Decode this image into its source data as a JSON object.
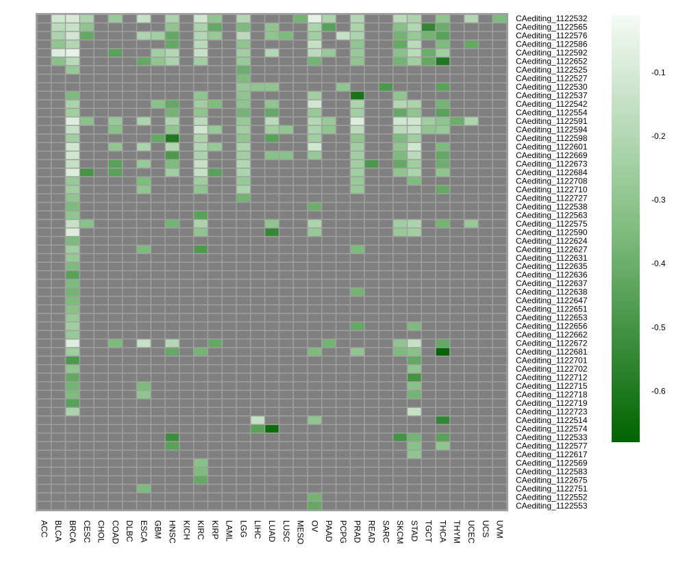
{
  "chart_data": {
    "type": "heatmap",
    "title": "",
    "xlabel": "",
    "ylabel": "",
    "na_color": "#808080",
    "color_low": "#006400",
    "color_high": "#F5FAF5",
    "value_range": [
      -0.68,
      -0.01
    ],
    "columns": [
      "ACC",
      "BLCA",
      "BRCA",
      "CESC",
      "CHOL",
      "COAD",
      "DLBC",
      "ESCA",
      "GBM",
      "HNSC",
      "KICH",
      "KIRC",
      "KIRP",
      "LAML",
      "LGG",
      "LIHC",
      "LUAD",
      "LUSC",
      "MESO",
      "OV",
      "PAAD",
      "PCPG",
      "PRAD",
      "READ",
      "SARC",
      "SKCM",
      "STAD",
      "TGCT",
      "THCA",
      "THYM",
      "UCEC",
      "UCS",
      "UVM"
    ],
    "rows": [
      {
        "name": "CAediting_1122532",
        "values": {
          "BLCA": -0.12,
          "BRCA": -0.1,
          "CESC": -0.22,
          "COAD": -0.28,
          "ESCA": -0.15,
          "HNSC": -0.22,
          "KIRC": -0.12,
          "KIRP": -0.3,
          "LGG": -0.2,
          "OV": -0.06,
          "PAAD": -0.22,
          "PRAD": -0.2,
          "SKCM": -0.18,
          "STAD": -0.22,
          "THCA": -0.3,
          "UCEC": -0.2,
          "UVM": -0.35,
          "MESO": -0.38
        }
      },
      {
        "name": "CAediting_1122565",
        "values": {
          "BLCA": -0.18,
          "BRCA": -0.14,
          "CESC": -0.3,
          "HNSC": -0.3,
          "KIRC": -0.22,
          "KIRP": -0.42,
          "LGG": -0.35,
          "LUAD": -0.3,
          "OV": -0.22,
          "PAAD": -0.45,
          "PRAD": -0.22,
          "SKCM": -0.32,
          "STAD": -0.2,
          "TGCT": -0.55,
          "THCA": -0.4
        }
      },
      {
        "name": "CAediting_1122576",
        "values": {
          "BLCA": -0.22,
          "BRCA": -0.12,
          "CESC": -0.42,
          "ESCA": -0.22,
          "GBM": -0.25,
          "HNSC": -0.42,
          "KIRC": -0.2,
          "KIRP": -0.28,
          "LGG": -0.18,
          "LUAD": -0.3,
          "LUSC": -0.35,
          "OV": -0.25,
          "PCPG": -0.15,
          "PRAD": -0.22,
          "SKCM": -0.38,
          "STAD": -0.28,
          "TGCT": -0.38,
          "THCA": -0.45
        }
      },
      {
        "name": "CAediting_1122586",
        "values": {
          "BLCA": -0.3,
          "BRCA": -0.2,
          "HNSC": -0.42,
          "KIRC": -0.18,
          "LGG": -0.3,
          "OV": -0.15,
          "PRAD": -0.3,
          "SKCM": -0.42,
          "STAD": -0.18,
          "THCA": -0.35,
          "UCEC": -0.42
        }
      },
      {
        "name": "CAediting_1122592",
        "values": {
          "BLCA": -0.08,
          "BRCA": -0.05,
          "COAD": -0.45,
          "GBM": -0.25,
          "HNSC": -0.2,
          "KIRC": -0.15,
          "LGG": -0.25,
          "LUAD": -0.2,
          "OV": -0.18,
          "PAAD": -0.28,
          "PRAD": -0.28,
          "SKCM": -0.32,
          "STAD": -0.18,
          "TGCT": -0.4,
          "THCA": -0.25
        }
      },
      {
        "name": "CAediting_1122652",
        "values": {
          "BLCA": -0.32,
          "BRCA": -0.18,
          "ESCA": -0.42,
          "GBM": -0.3,
          "HNSC": -0.22,
          "KIRC": -0.25,
          "LGG": -0.28,
          "OV": -0.38,
          "PRAD": -0.3,
          "SKCM": -0.38,
          "STAD": -0.25,
          "TGCT": -0.42,
          "THCA": -0.6
        }
      },
      {
        "name": "CAediting_1122525",
        "values": {
          "BRCA": -0.28,
          "LGG": -0.4
        }
      },
      {
        "name": "CAediting_1122527",
        "values": {
          "LGG": -0.35
        }
      },
      {
        "name": "CAediting_1122530",
        "values": {
          "LGG": -0.28,
          "LIHC": -0.3,
          "LUAD": -0.3,
          "PCPG": -0.3,
          "SARC": -0.48,
          "THCA": -0.45
        }
      },
      {
        "name": "CAediting_1122537",
        "values": {
          "BRCA": -0.35,
          "KIRC": -0.3,
          "LGG": -0.3,
          "OV": -0.25,
          "PRAD": -0.62,
          "SKCM": -0.3
        }
      },
      {
        "name": "CAediting_1122542",
        "values": {
          "BRCA": -0.22,
          "GBM": -0.32,
          "HNSC": -0.42,
          "KIRC": -0.25,
          "KIRP": -0.35,
          "LGG": -0.3,
          "LUAD": -0.3,
          "OV": -0.12,
          "PRAD": -0.22,
          "SKCM": -0.2,
          "STAD": -0.22,
          "THCA": -0.38
        }
      },
      {
        "name": "CAediting_1122554",
        "values": {
          "BRCA": -0.25,
          "HNSC": -0.38,
          "KIRC": -0.3,
          "LGG": -0.38,
          "LUAD": -0.42,
          "OV": -0.28,
          "PRAD": -0.25,
          "SKCM": -0.42,
          "STAD": -0.3,
          "THCA": -0.45
        }
      },
      {
        "name": "CAediting_1122591",
        "values": {
          "BRCA": -0.08,
          "CESC": -0.32,
          "COAD": -0.28,
          "ESCA": -0.22,
          "HNSC": -0.22,
          "KIRC": -0.18,
          "LGG": -0.28,
          "LUAD": -0.18,
          "OV": -0.2,
          "PAAD": -0.28,
          "PRAD": -0.08,
          "SKCM": -0.12,
          "STAD": -0.12,
          "TGCT": -0.25,
          "THCA": -0.3,
          "THYM": -0.4,
          "UCEC": -0.22
        }
      },
      {
        "name": "CAediting_1122594",
        "values": {
          "BRCA": -0.15,
          "COAD": -0.32,
          "HNSC": -0.3,
          "KIRC": -0.12,
          "KIRP": -0.28,
          "LGG": -0.25,
          "LUAD": -0.25,
          "LUSC": -0.3,
          "OV": -0.22,
          "PAAD": -0.3,
          "PRAD": -0.18,
          "SKCM": -0.18,
          "STAD": -0.15,
          "TGCT": -0.3,
          "THCA": -0.28
        }
      },
      {
        "name": "CAediting_1122598",
        "values": {
          "BRCA": -0.25,
          "GBM": -0.42,
          "HNSC": -0.6,
          "KIRC": -0.22,
          "LGG": -0.3,
          "LUAD": -0.45,
          "OV": -0.25,
          "PRAD": -0.3,
          "SKCM": -0.35,
          "STAD": -0.25
        }
      },
      {
        "name": "CAediting_1122601",
        "values": {
          "BRCA": -0.12,
          "COAD": -0.3,
          "ESCA": -0.22,
          "HNSC": -0.2,
          "KIRC": -0.2,
          "KIRP": -0.28,
          "LGG": -0.22,
          "OV": -0.12,
          "PRAD": -0.25,
          "SKCM": -0.3,
          "STAD": -0.12,
          "THCA": -0.35
        }
      },
      {
        "name": "CAediting_1122669",
        "values": {
          "BRCA": -0.12,
          "HNSC": -0.48,
          "KIRC": -0.22,
          "LGG": -0.25,
          "LUAD": -0.32,
          "LUSC": -0.32,
          "OV": -0.28,
          "PRAD": -0.25,
          "SKCM": -0.35,
          "STAD": -0.18,
          "THCA": -0.42
        }
      },
      {
        "name": "CAediting_1122673",
        "values": {
          "BRCA": -0.15,
          "COAD": -0.45,
          "ESCA": -0.28,
          "HNSC": -0.35,
          "KIRC": -0.15,
          "LGG": -0.2,
          "PRAD": -0.25,
          "READ": -0.48,
          "SKCM": -0.42,
          "STAD": -0.25,
          "THCA": -0.4
        }
      },
      {
        "name": "CAediting_1122684",
        "values": {
          "BRCA": -0.08,
          "CESC": -0.5,
          "COAD": -0.45,
          "HNSC": -0.25,
          "KIRC": -0.15,
          "KIRP": -0.45,
          "LGG": -0.22,
          "PRAD": -0.25,
          "SKCM": -0.3,
          "STAD": -0.22,
          "THCA": -0.3
        }
      },
      {
        "name": "CAediting_1122708",
        "values": {
          "BRCA": -0.28,
          "ESCA": -0.35,
          "KIRC": -0.25,
          "LGG": -0.28,
          "PRAD": -0.28,
          "STAD": -0.35
        }
      },
      {
        "name": "CAediting_1122710",
        "values": {
          "BRCA": -0.25,
          "ESCA": -0.3,
          "KIRC": -0.3,
          "LGG": -0.22,
          "PRAD": -0.28,
          "THCA": -0.42
        }
      },
      {
        "name": "CAediting_1122727",
        "values": {
          "BRCA": -0.3,
          "LGG": -0.38
        }
      },
      {
        "name": "CAediting_1122538",
        "values": {
          "BRCA": -0.35,
          "OV": -0.4
        }
      },
      {
        "name": "CAediting_1122563",
        "values": {
          "BRCA": -0.3,
          "KIRC": -0.45
        }
      },
      {
        "name": "CAediting_1122575",
        "values": {
          "BRCA": -0.15,
          "CESC": -0.32,
          "HNSC": -0.38,
          "KIRC": -0.22,
          "LUAD": -0.3,
          "OV": -0.22,
          "SKCM": -0.25,
          "STAD": -0.22,
          "THCA": -0.38,
          "UCEC": -0.28
        }
      },
      {
        "name": "CAediting_1122590",
        "values": {
          "BRCA": -0.08,
          "KIRC": -0.3,
          "LUAD": -0.55,
          "OV": -0.28,
          "SKCM": -0.28,
          "STAD": -0.25
        }
      },
      {
        "name": "CAediting_1122624",
        "values": {
          "BRCA": -0.35
        }
      },
      {
        "name": "CAediting_1122627",
        "values": {
          "BRCA": -0.25,
          "ESCA": -0.35,
          "KIRC": -0.48,
          "PRAD": -0.35
        }
      },
      {
        "name": "CAediting_1122631",
        "values": {
          "BRCA": -0.28
        }
      },
      {
        "name": "CAediting_1122635",
        "values": {
          "BRCA": -0.35
        }
      },
      {
        "name": "CAediting_1122636",
        "values": {
          "BRCA": -0.45
        }
      },
      {
        "name": "CAediting_1122637",
        "values": {
          "BRCA": -0.35
        }
      },
      {
        "name": "CAediting_1122638",
        "values": {
          "BRCA": -0.38,
          "PRAD": -0.38
        }
      },
      {
        "name": "CAediting_1122647",
        "values": {
          "BRCA": -0.35
        }
      },
      {
        "name": "CAediting_1122651",
        "values": {
          "BRCA": -0.32
        }
      },
      {
        "name": "CAediting_1122653",
        "values": {
          "BRCA": -0.28
        }
      },
      {
        "name": "CAediting_1122656",
        "values": {
          "BRCA": -0.25,
          "PRAD": -0.42,
          "STAD": -0.35
        }
      },
      {
        "name": "CAediting_1122662",
        "values": {
          "BRCA": -0.28
        }
      },
      {
        "name": "CAediting_1122672",
        "values": {
          "BRCA": -0.08,
          "COAD": -0.35,
          "ESCA": -0.15,
          "HNSC": -0.2,
          "KIRP": -0.42,
          "PAAD": -0.38,
          "SKCM": -0.3,
          "STAD": -0.15,
          "THCA": -0.42
        }
      },
      {
        "name": "CAediting_1122681",
        "values": {
          "BRCA": -0.25,
          "HNSC": -0.42,
          "KIRC": -0.38,
          "OV": -0.35,
          "PRAD": -0.3,
          "SKCM": -0.35,
          "STAD": -0.32,
          "THCA": -0.68
        }
      },
      {
        "name": "CAediting_1122701",
        "values": {
          "BRCA": -0.48,
          "STAD": -0.42
        }
      },
      {
        "name": "CAediting_1122702",
        "values": {
          "BRCA": -0.3,
          "STAD": -0.3
        }
      },
      {
        "name": "CAediting_1122712",
        "values": {
          "BRCA": -0.42,
          "STAD": -0.5
        }
      },
      {
        "name": "CAediting_1122715",
        "values": {
          "BRCA": -0.38,
          "ESCA": -0.35,
          "STAD": -0.32
        }
      },
      {
        "name": "CAediting_1122718",
        "values": {
          "BRCA": -0.35,
          "ESCA": -0.3,
          "STAD": -0.38
        }
      },
      {
        "name": "CAediting_1122719",
        "values": {
          "BRCA": -0.45
        }
      },
      {
        "name": "CAediting_1122723",
        "values": {
          "BRCA": -0.22,
          "STAD": -0.15
        }
      },
      {
        "name": "CAediting_1122514",
        "values": {
          "LIHC": -0.15,
          "OV": -0.3,
          "THCA": -0.55
        }
      },
      {
        "name": "CAediting_1122574",
        "values": {
          "LIHC": -0.45,
          "LUAD": -0.65
        }
      },
      {
        "name": "CAediting_1122533",
        "values": {
          "HNSC": -0.52,
          "SKCM": -0.5,
          "STAD": -0.38,
          "THCA": -0.45
        }
      },
      {
        "name": "CAediting_1122577",
        "values": {
          "HNSC": -0.45,
          "STAD": -0.32,
          "THCA": -0.3
        }
      },
      {
        "name": "CAediting_1122617",
        "values": {
          "STAD": -0.3
        }
      },
      {
        "name": "CAediting_1122569",
        "values": {
          "KIRC": -0.32
        }
      },
      {
        "name": "CAediting_1122583",
        "values": {
          "KIRC": -0.35
        }
      },
      {
        "name": "CAediting_1122675",
        "values": {
          "KIRC": -0.42
        }
      },
      {
        "name": "CAediting_1122751",
        "values": {
          "ESCA": -0.35
        }
      },
      {
        "name": "CAediting_1122552",
        "values": {
          "OV": -0.38
        }
      },
      {
        "name": "CAediting_1122553",
        "values": {
          "OV": -0.42
        }
      }
    ],
    "legend": {
      "ticks": [
        -0.1,
        -0.2,
        -0.3,
        -0.4,
        -0.5,
        -0.6
      ],
      "tick_labels": [
        "-0.1",
        "-0.2",
        "-0.3",
        "-0.4",
        "-0.5",
        "-0.6"
      ]
    }
  }
}
